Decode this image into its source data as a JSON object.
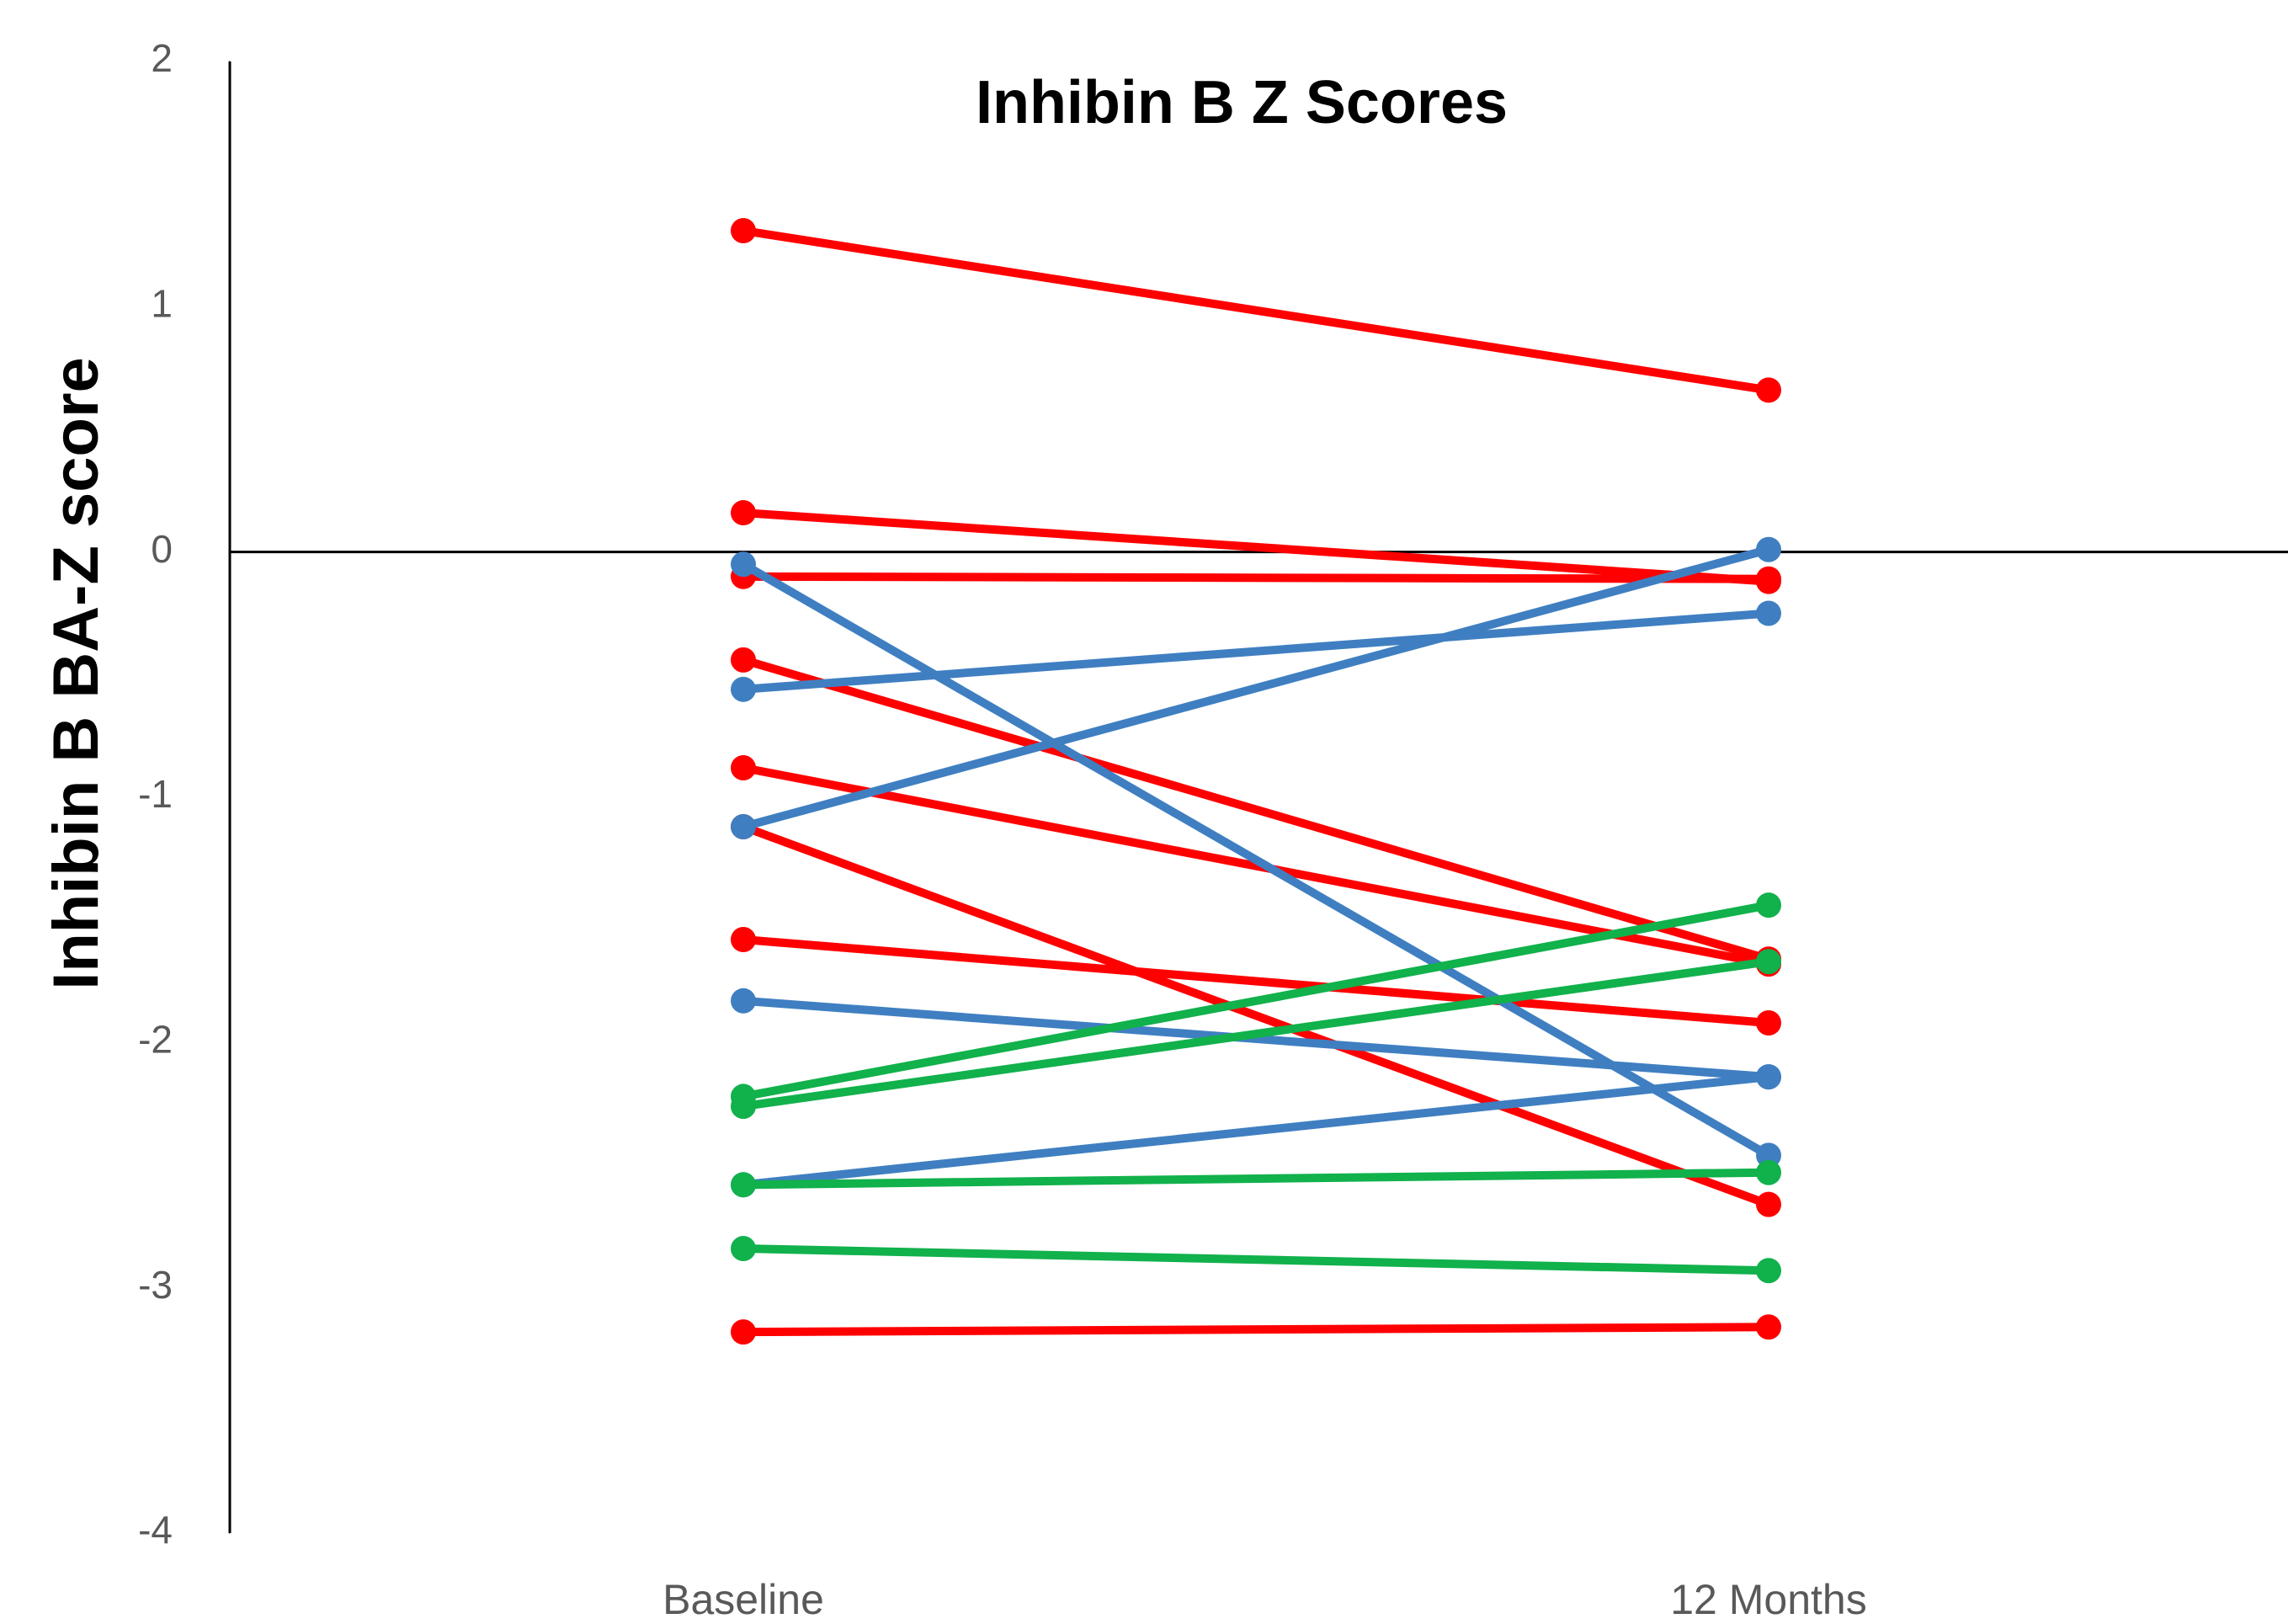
{
  "chart_data": {
    "type": "line",
    "title": "Inhibin B Z Scores",
    "y_label": "Inhibin B BA-Z score",
    "categories": [
      "Baseline",
      "12 Months"
    ],
    "series": [
      {
        "color": "#ff0000",
        "values": [
          1.31,
          0.66
        ]
      },
      {
        "color": "#ff0000",
        "values": [
          0.16,
          -0.12
        ]
      },
      {
        "color": "#ff0000",
        "values": [
          -0.1,
          -0.11
        ]
      },
      {
        "color": "#ff0000",
        "values": [
          -0.44,
          -1.66
        ]
      },
      {
        "color": "#ff0000",
        "values": [
          -0.88,
          -1.68
        ]
      },
      {
        "color": "#ff0000",
        "values": [
          -1.12,
          -2.66
        ]
      },
      {
        "color": "#ff0000",
        "values": [
          -1.58,
          -1.92
        ]
      },
      {
        "color": "#ff0000",
        "values": [
          -3.18,
          -3.16
        ]
      },
      {
        "color": "#3f7fc1",
        "values": [
          -0.05,
          -2.46
        ]
      },
      {
        "color": "#3f7fc1",
        "values": [
          -0.56,
          -0.25
        ]
      },
      {
        "color": "#3f7fc1",
        "values": [
          -1.12,
          0.01
        ]
      },
      {
        "color": "#3f7fc1",
        "values": [
          -1.83,
          -2.14
        ]
      },
      {
        "color": "#3f7fc1",
        "values": [
          -2.58,
          -2.14
        ]
      },
      {
        "color": "#11b14c",
        "values": [
          -2.22,
          -1.44
        ]
      },
      {
        "color": "#11b14c",
        "values": [
          -2.26,
          -1.67
        ]
      },
      {
        "color": "#11b14c",
        "values": [
          -2.58,
          -2.53
        ]
      },
      {
        "color": "#11b14c",
        "values": [
          -2.84,
          -2.93
        ]
      }
    ],
    "ylim": [
      -4,
      2
    ],
    "yticks": [
      -4,
      -3,
      -2,
      -1,
      0,
      1,
      2
    ]
  }
}
